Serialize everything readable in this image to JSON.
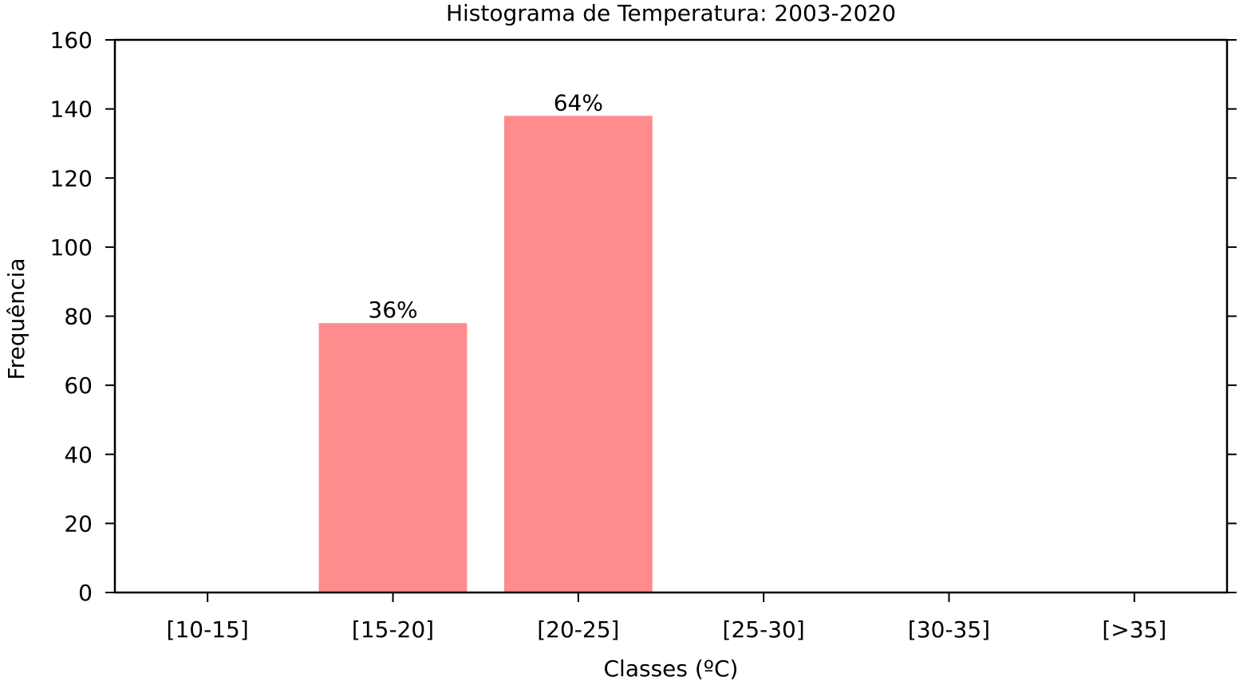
{
  "chart_data": {
    "type": "bar",
    "title": "Histograma de Temperatura: 2003-2020",
    "xlabel": "Classes (ºC)",
    "ylabel": "Frequência",
    "categories": [
      "[10-15]",
      "[15-20]",
      "[20-25]",
      "[25-30]",
      "[30-35]",
      "[>35]"
    ],
    "values": [
      0,
      78,
      138,
      0,
      0,
      0
    ],
    "bar_labels": [
      "",
      "36%",
      "64%",
      "",
      "",
      ""
    ],
    "ylim": [
      0,
      160
    ],
    "yticks": [
      0,
      20,
      40,
      60,
      80,
      100,
      120,
      140,
      160
    ],
    "bar_color": "#ff8c8c",
    "grid": false,
    "legend": "none"
  }
}
